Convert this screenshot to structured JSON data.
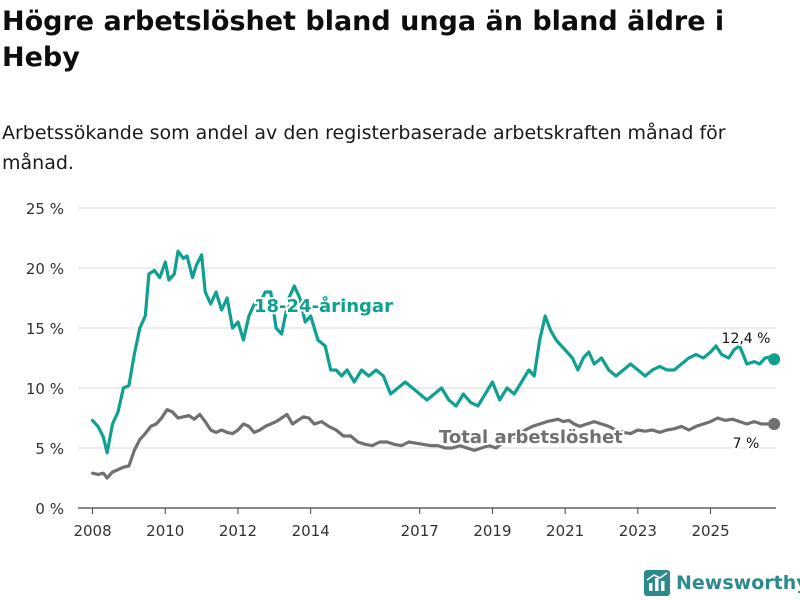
{
  "title": "Högre arbetslöshet bland unga än bland äldre i Heby",
  "subtitle": "Arbetssökande som andel av den registerbaserade arbetskraften månad för månad.",
  "brand": {
    "name": "Newsworthy",
    "icon": "bar-chart-logo-icon"
  },
  "colors": {
    "young": "#10a090",
    "total": "#707070",
    "grid": "#d9d9d9",
    "brand": "#2c8a8c"
  },
  "chart_data": {
    "type": "line",
    "ylim": [
      0,
      25
    ],
    "xlim": [
      2007.6,
      2026.8
    ],
    "y_ticks": [
      0,
      5,
      10,
      15,
      20,
      25
    ],
    "y_tick_labels": [
      "0 %",
      "5 %",
      "10 %",
      "15 %",
      "20 %",
      "25 %"
    ],
    "x_ticks": [
      2008,
      2010,
      2012,
      2014,
      2017,
      2019,
      2021,
      2023,
      2025
    ],
    "x_tick_labels": [
      "2008",
      "2010",
      "2012",
      "2014",
      "2017",
      "2019",
      "2021",
      "2023",
      "2025"
    ],
    "series": [
      {
        "name": "18-24-åringar",
        "color": "#10a090",
        "label": "18-24-åringar",
        "end_label": "12,4 %",
        "x": [
          2008.0,
          2008.15,
          2008.3,
          2008.4,
          2008.55,
          2008.7,
          2008.85,
          2009.0,
          2009.15,
          2009.3,
          2009.45,
          2009.55,
          2009.7,
          2009.85,
          2010.0,
          2010.1,
          2010.25,
          2010.35,
          2010.5,
          2010.6,
          2010.75,
          2010.85,
          2011.0,
          2011.1,
          2011.25,
          2011.4,
          2011.55,
          2011.7,
          2011.85,
          2012.0,
          2012.15,
          2012.3,
          2012.45,
          2012.6,
          2012.75,
          2012.9,
          2013.05,
          2013.2,
          2013.4,
          2013.55,
          2013.7,
          2013.85,
          2014.0,
          2014.2,
          2014.4,
          2014.55,
          2014.7,
          2014.85,
          2015.0,
          2015.2,
          2015.4,
          2015.6,
          2015.8,
          2016.0,
          2016.2,
          2016.4,
          2016.6,
          2016.8,
          2017.0,
          2017.2,
          2017.4,
          2017.6,
          2017.8,
          2018.0,
          2018.2,
          2018.4,
          2018.6,
          2018.8,
          2019.0,
          2019.2,
          2019.4,
          2019.6,
          2019.8,
          2020.0,
          2020.15,
          2020.3,
          2020.45,
          2020.6,
          2020.75,
          2020.9,
          2021.05,
          2021.2,
          2021.35,
          2021.5,
          2021.65,
          2021.8,
          2022.0,
          2022.2,
          2022.4,
          2022.6,
          2022.8,
          2023.0,
          2023.2,
          2023.4,
          2023.6,
          2023.8,
          2024.0,
          2024.2,
          2024.4,
          2024.6,
          2024.8,
          2025.0,
          2025.15,
          2025.3,
          2025.5,
          2025.65,
          2025.8,
          2026.0,
          2026.2,
          2026.35,
          2026.5,
          2026.65,
          2026.75
        ],
        "values": [
          7.3,
          6.8,
          5.9,
          4.6,
          7.0,
          8.0,
          10.0,
          10.2,
          12.8,
          15.0,
          16.0,
          19.5,
          19.8,
          19.2,
          20.5,
          19.0,
          19.5,
          21.4,
          20.8,
          21.0,
          19.2,
          20.2,
          21.1,
          18.0,
          17.0,
          18.0,
          16.5,
          17.5,
          15.0,
          15.5,
          14.0,
          16.0,
          17.0,
          17.0,
          18.0,
          18.0,
          15.0,
          14.5,
          17.5,
          18.5,
          17.5,
          15.5,
          16.0,
          14.0,
          13.5,
          11.5,
          11.5,
          11.0,
          11.5,
          10.5,
          11.5,
          11.0,
          11.5,
          11.0,
          9.5,
          10.0,
          10.5,
          10.0,
          9.5,
          9.0,
          9.5,
          10.0,
          9.0,
          8.5,
          9.5,
          8.8,
          8.5,
          9.5,
          10.5,
          9.0,
          10.0,
          9.5,
          10.5,
          11.5,
          11.0,
          14.0,
          16.0,
          14.8,
          14.0,
          13.5,
          13.0,
          12.5,
          11.5,
          12.5,
          13.0,
          12.0,
          12.5,
          11.5,
          11.0,
          11.5,
          12.0,
          11.5,
          11.0,
          11.5,
          11.8,
          11.5,
          11.5,
          12.0,
          12.5,
          12.8,
          12.5,
          13.0,
          13.5,
          12.8,
          12.5,
          13.2,
          13.5,
          12.0,
          12.2,
          12.0,
          12.5,
          12.6,
          12.4
        ]
      },
      {
        "name": "Total arbetslöshet",
        "color": "#707070",
        "label": "Total arbetslöshet",
        "end_label": "7 %",
        "x": [
          2008.0,
          2008.15,
          2008.3,
          2008.4,
          2008.55,
          2008.7,
          2008.85,
          2009.0,
          2009.15,
          2009.3,
          2009.45,
          2009.6,
          2009.75,
          2009.9,
          2010.05,
          2010.2,
          2010.35,
          2010.5,
          2010.65,
          2010.8,
          2010.95,
          2011.1,
          2011.25,
          2011.4,
          2011.55,
          2011.7,
          2011.85,
          2012.0,
          2012.15,
          2012.3,
          2012.45,
          2012.6,
          2012.75,
          2012.9,
          2013.05,
          2013.2,
          2013.35,
          2013.5,
          2013.65,
          2013.8,
          2013.95,
          2014.1,
          2014.3,
          2014.5,
          2014.7,
          2014.9,
          2015.1,
          2015.3,
          2015.5,
          2015.7,
          2015.9,
          2016.1,
          2016.3,
          2016.5,
          2016.7,
          2016.9,
          2017.1,
          2017.3,
          2017.5,
          2017.7,
          2017.9,
          2018.1,
          2018.3,
          2018.5,
          2018.7,
          2018.9,
          2019.1,
          2019.3,
          2019.5,
          2019.7,
          2019.9,
          2020.1,
          2020.3,
          2020.5,
          2020.65,
          2020.8,
          2020.95,
          2021.1,
          2021.25,
          2021.4,
          2021.6,
          2021.8,
          2022.0,
          2022.2,
          2022.4,
          2022.6,
          2022.8,
          2023.0,
          2023.2,
          2023.4,
          2023.6,
          2023.8,
          2024.0,
          2024.2,
          2024.4,
          2024.6,
          2024.8,
          2025.0,
          2025.2,
          2025.4,
          2025.6,
          2025.8,
          2026.0,
          2026.2,
          2026.4,
          2026.6,
          2026.75
        ],
        "values": [
          2.9,
          2.8,
          2.9,
          2.5,
          3.0,
          3.2,
          3.4,
          3.5,
          4.8,
          5.7,
          6.2,
          6.8,
          7.0,
          7.5,
          8.2,
          8.0,
          7.5,
          7.6,
          7.7,
          7.4,
          7.8,
          7.2,
          6.5,
          6.3,
          6.5,
          6.3,
          6.2,
          6.5,
          7.0,
          6.8,
          6.3,
          6.5,
          6.8,
          7.0,
          7.2,
          7.5,
          7.8,
          7.0,
          7.3,
          7.6,
          7.5,
          7.0,
          7.2,
          6.8,
          6.5,
          6.0,
          6.0,
          5.5,
          5.3,
          5.2,
          5.5,
          5.5,
          5.3,
          5.2,
          5.5,
          5.4,
          5.3,
          5.2,
          5.2,
          5.0,
          5.0,
          5.2,
          5.0,
          4.8,
          5.0,
          5.2,
          5.0,
          5.5,
          5.8,
          6.0,
          6.5,
          6.8,
          7.0,
          7.2,
          7.3,
          7.4,
          7.2,
          7.3,
          7.0,
          6.8,
          7.0,
          7.2,
          7.0,
          6.8,
          6.5,
          6.3,
          6.2,
          6.5,
          6.4,
          6.5,
          6.3,
          6.5,
          6.6,
          6.8,
          6.5,
          6.8,
          7.0,
          7.2,
          7.5,
          7.3,
          7.4,
          7.2,
          7.0,
          7.2,
          7.0,
          7.0,
          7.0
        ]
      }
    ]
  }
}
